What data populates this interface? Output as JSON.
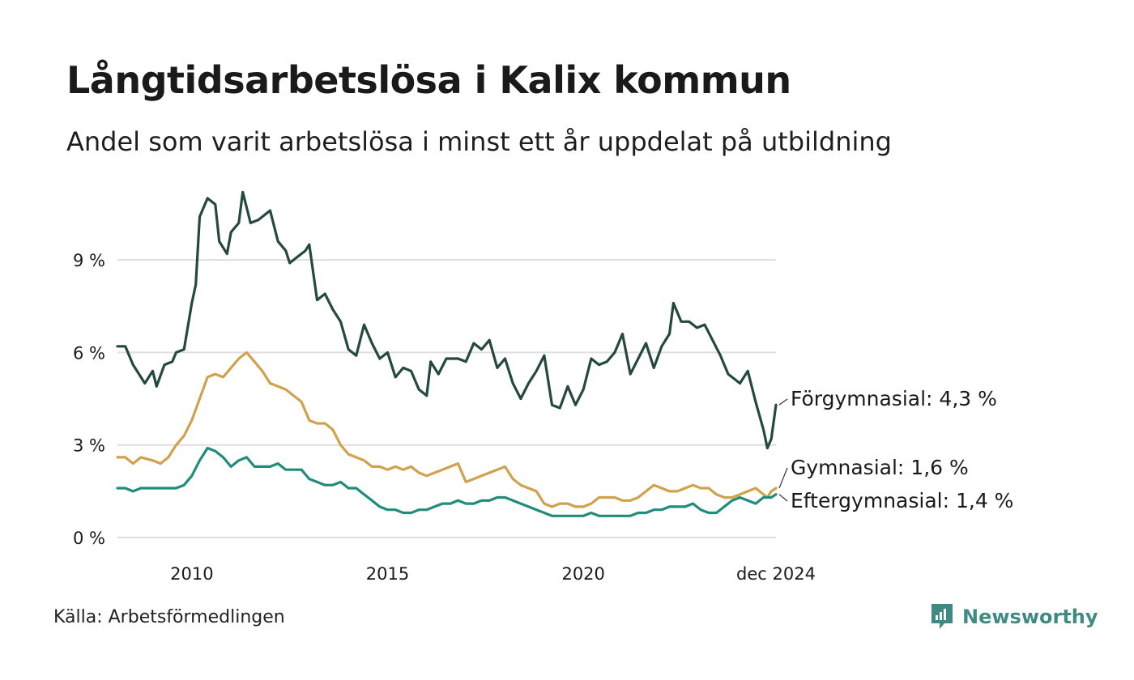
{
  "title": "Långtidsarbetslösa i Kalix kommun",
  "subtitle": "Andel som varit arbetslösa i minst ett år uppdelat på utbildning",
  "source": "Källa: Arbetsförmedlingen",
  "brand": {
    "name": "Newsworthy",
    "icon": "newsworthy-logo-icon",
    "color": "#3f8b84"
  },
  "chart_data": {
    "type": "line",
    "title": "Långtidsarbetslösa i Kalix kommun",
    "subtitle": "Andel som varit arbetslösa i minst ett år uppdelat på utbildning",
    "xlabel": "",
    "ylabel": "",
    "xlim": [
      2008.1,
      2024.92
    ],
    "ylim": [
      0,
      11.5
    ],
    "grid": true,
    "y_ticks": [
      {
        "value": 0,
        "label": "0 %"
      },
      {
        "value": 3,
        "label": "3 %"
      },
      {
        "value": 6,
        "label": "6 %"
      },
      {
        "value": 9,
        "label": "9 %"
      }
    ],
    "x_ticks": [
      {
        "value": 2010,
        "label": "2010"
      },
      {
        "value": 2015,
        "label": "2015"
      },
      {
        "value": 2020,
        "label": "2020"
      },
      {
        "value": 2024.92,
        "label": "dec 2024"
      }
    ],
    "series": [
      {
        "name": "Förgymnasial",
        "label": "Förgymnasial: 4,3 %",
        "color": "#25483f",
        "points": [
          [
            2008.1,
            6.2
          ],
          [
            2008.3,
            6.2
          ],
          [
            2008.5,
            5.6
          ],
          [
            2008.8,
            5.0
          ],
          [
            2009.0,
            5.4
          ],
          [
            2009.1,
            4.9
          ],
          [
            2009.3,
            5.6
          ],
          [
            2009.5,
            5.7
          ],
          [
            2009.6,
            6.0
          ],
          [
            2009.8,
            6.1
          ],
          [
            2010.0,
            7.6
          ],
          [
            2010.1,
            8.2
          ],
          [
            2010.2,
            10.4
          ],
          [
            2010.4,
            11.0
          ],
          [
            2010.6,
            10.8
          ],
          [
            2010.7,
            9.6
          ],
          [
            2010.9,
            9.2
          ],
          [
            2011.0,
            9.9
          ],
          [
            2011.2,
            10.2
          ],
          [
            2011.3,
            11.2
          ],
          [
            2011.5,
            10.2
          ],
          [
            2011.7,
            10.3
          ],
          [
            2011.9,
            10.5
          ],
          [
            2012.0,
            10.6
          ],
          [
            2012.2,
            9.6
          ],
          [
            2012.4,
            9.3
          ],
          [
            2012.5,
            8.9
          ],
          [
            2012.7,
            9.1
          ],
          [
            2012.9,
            9.3
          ],
          [
            2013.0,
            9.5
          ],
          [
            2013.2,
            7.7
          ],
          [
            2013.4,
            7.9
          ],
          [
            2013.6,
            7.4
          ],
          [
            2013.8,
            7.0
          ],
          [
            2014.0,
            6.1
          ],
          [
            2014.2,
            5.9
          ],
          [
            2014.4,
            6.9
          ],
          [
            2014.6,
            6.3
          ],
          [
            2014.8,
            5.8
          ],
          [
            2015.0,
            6.0
          ],
          [
            2015.2,
            5.2
          ],
          [
            2015.4,
            5.5
          ],
          [
            2015.6,
            5.4
          ],
          [
            2015.8,
            4.8
          ],
          [
            2016.0,
            4.6
          ],
          [
            2016.1,
            5.7
          ],
          [
            2016.3,
            5.3
          ],
          [
            2016.5,
            5.8
          ],
          [
            2016.8,
            5.8
          ],
          [
            2017.0,
            5.7
          ],
          [
            2017.2,
            6.3
          ],
          [
            2017.4,
            6.1
          ],
          [
            2017.6,
            6.4
          ],
          [
            2017.8,
            5.5
          ],
          [
            2018.0,
            5.8
          ],
          [
            2018.2,
            5.0
          ],
          [
            2018.4,
            4.5
          ],
          [
            2018.6,
            5.0
          ],
          [
            2018.8,
            5.4
          ],
          [
            2019.0,
            5.9
          ],
          [
            2019.2,
            4.3
          ],
          [
            2019.4,
            4.2
          ],
          [
            2019.6,
            4.9
          ],
          [
            2019.8,
            4.3
          ],
          [
            2020.0,
            4.8
          ],
          [
            2020.2,
            5.8
          ],
          [
            2020.4,
            5.6
          ],
          [
            2020.6,
            5.7
          ],
          [
            2020.8,
            6.0
          ],
          [
            2021.0,
            6.6
          ],
          [
            2021.2,
            5.3
          ],
          [
            2021.4,
            5.8
          ],
          [
            2021.6,
            6.3
          ],
          [
            2021.8,
            5.5
          ],
          [
            2022.0,
            6.2
          ],
          [
            2022.2,
            6.6
          ],
          [
            2022.3,
            7.6
          ],
          [
            2022.5,
            7.0
          ],
          [
            2022.7,
            7.0
          ],
          [
            2022.9,
            6.8
          ],
          [
            2023.1,
            6.9
          ],
          [
            2023.3,
            6.4
          ],
          [
            2023.5,
            5.9
          ],
          [
            2023.7,
            5.3
          ],
          [
            2024.0,
            5.0
          ],
          [
            2024.2,
            5.4
          ],
          [
            2024.4,
            4.4
          ],
          [
            2024.6,
            3.5
          ],
          [
            2024.7,
            2.9
          ],
          [
            2024.8,
            3.2
          ],
          [
            2024.92,
            4.3
          ]
        ]
      },
      {
        "name": "Gymnasial",
        "label": "Gymnasial: 1,6 %",
        "color": "#d0a24e",
        "points": [
          [
            2008.1,
            2.6
          ],
          [
            2008.3,
            2.6
          ],
          [
            2008.5,
            2.4
          ],
          [
            2008.7,
            2.6
          ],
          [
            2009.0,
            2.5
          ],
          [
            2009.2,
            2.4
          ],
          [
            2009.4,
            2.6
          ],
          [
            2009.6,
            3.0
          ],
          [
            2009.8,
            3.3
          ],
          [
            2010.0,
            3.8
          ],
          [
            2010.2,
            4.5
          ],
          [
            2010.4,
            5.2
          ],
          [
            2010.6,
            5.3
          ],
          [
            2010.8,
            5.2
          ],
          [
            2011.0,
            5.5
          ],
          [
            2011.2,
            5.8
          ],
          [
            2011.4,
            6.0
          ],
          [
            2011.6,
            5.7
          ],
          [
            2011.8,
            5.4
          ],
          [
            2012.0,
            5.0
          ],
          [
            2012.2,
            4.9
          ],
          [
            2012.4,
            4.8
          ],
          [
            2012.6,
            4.6
          ],
          [
            2012.8,
            4.4
          ],
          [
            2013.0,
            3.8
          ],
          [
            2013.2,
            3.7
          ],
          [
            2013.4,
            3.7
          ],
          [
            2013.6,
            3.5
          ],
          [
            2013.8,
            3.0
          ],
          [
            2014.0,
            2.7
          ],
          [
            2014.2,
            2.6
          ],
          [
            2014.4,
            2.5
          ],
          [
            2014.6,
            2.3
          ],
          [
            2014.8,
            2.3
          ],
          [
            2015.0,
            2.2
          ],
          [
            2015.2,
            2.3
          ],
          [
            2015.4,
            2.2
          ],
          [
            2015.6,
            2.3
          ],
          [
            2015.8,
            2.1
          ],
          [
            2016.0,
            2.0
          ],
          [
            2016.2,
            2.1
          ],
          [
            2016.4,
            2.2
          ],
          [
            2016.6,
            2.3
          ],
          [
            2016.8,
            2.4
          ],
          [
            2017.0,
            1.8
          ],
          [
            2017.2,
            1.9
          ],
          [
            2017.4,
            2.0
          ],
          [
            2017.6,
            2.1
          ],
          [
            2017.8,
            2.2
          ],
          [
            2018.0,
            2.3
          ],
          [
            2018.2,
            1.9
          ],
          [
            2018.4,
            1.7
          ],
          [
            2018.6,
            1.6
          ],
          [
            2018.8,
            1.5
          ],
          [
            2019.0,
            1.1
          ],
          [
            2019.2,
            1.0
          ],
          [
            2019.4,
            1.1
          ],
          [
            2019.6,
            1.1
          ],
          [
            2019.8,
            1.0
          ],
          [
            2020.0,
            1.0
          ],
          [
            2020.2,
            1.1
          ],
          [
            2020.4,
            1.3
          ],
          [
            2020.6,
            1.3
          ],
          [
            2020.8,
            1.3
          ],
          [
            2021.0,
            1.2
          ],
          [
            2021.2,
            1.2
          ],
          [
            2021.4,
            1.3
          ],
          [
            2021.6,
            1.5
          ],
          [
            2021.8,
            1.7
          ],
          [
            2022.0,
            1.6
          ],
          [
            2022.2,
            1.5
          ],
          [
            2022.4,
            1.5
          ],
          [
            2022.6,
            1.6
          ],
          [
            2022.8,
            1.7
          ],
          [
            2023.0,
            1.6
          ],
          [
            2023.2,
            1.6
          ],
          [
            2023.4,
            1.4
          ],
          [
            2023.6,
            1.3
          ],
          [
            2023.8,
            1.3
          ],
          [
            2024.0,
            1.4
          ],
          [
            2024.2,
            1.5
          ],
          [
            2024.4,
            1.6
          ],
          [
            2024.6,
            1.4
          ],
          [
            2024.7,
            1.3
          ],
          [
            2024.8,
            1.5
          ],
          [
            2024.92,
            1.6
          ]
        ]
      },
      {
        "name": "Eftergymnasial",
        "label": "Eftergymnasial: 1,4 %",
        "color": "#1f8c7c",
        "points": [
          [
            2008.1,
            1.6
          ],
          [
            2008.3,
            1.6
          ],
          [
            2008.5,
            1.5
          ],
          [
            2008.7,
            1.6
          ],
          [
            2009.0,
            1.6
          ],
          [
            2009.2,
            1.6
          ],
          [
            2009.4,
            1.6
          ],
          [
            2009.6,
            1.6
          ],
          [
            2009.8,
            1.7
          ],
          [
            2010.0,
            2.0
          ],
          [
            2010.2,
            2.5
          ],
          [
            2010.4,
            2.9
          ],
          [
            2010.6,
            2.8
          ],
          [
            2010.8,
            2.6
          ],
          [
            2011.0,
            2.3
          ],
          [
            2011.2,
            2.5
          ],
          [
            2011.4,
            2.6
          ],
          [
            2011.6,
            2.3
          ],
          [
            2011.8,
            2.3
          ],
          [
            2012.0,
            2.3
          ],
          [
            2012.2,
            2.4
          ],
          [
            2012.4,
            2.2
          ],
          [
            2012.6,
            2.2
          ],
          [
            2012.8,
            2.2
          ],
          [
            2013.0,
            1.9
          ],
          [
            2013.2,
            1.8
          ],
          [
            2013.4,
            1.7
          ],
          [
            2013.6,
            1.7
          ],
          [
            2013.8,
            1.8
          ],
          [
            2014.0,
            1.6
          ],
          [
            2014.2,
            1.6
          ],
          [
            2014.4,
            1.4
          ],
          [
            2014.6,
            1.2
          ],
          [
            2014.8,
            1.0
          ],
          [
            2015.0,
            0.9
          ],
          [
            2015.2,
            0.9
          ],
          [
            2015.4,
            0.8
          ],
          [
            2015.6,
            0.8
          ],
          [
            2015.8,
            0.9
          ],
          [
            2016.0,
            0.9
          ],
          [
            2016.2,
            1.0
          ],
          [
            2016.4,
            1.1
          ],
          [
            2016.6,
            1.1
          ],
          [
            2016.8,
            1.2
          ],
          [
            2017.0,
            1.1
          ],
          [
            2017.2,
            1.1
          ],
          [
            2017.4,
            1.2
          ],
          [
            2017.6,
            1.2
          ],
          [
            2017.8,
            1.3
          ],
          [
            2018.0,
            1.3
          ],
          [
            2018.2,
            1.2
          ],
          [
            2018.4,
            1.1
          ],
          [
            2018.6,
            1.0
          ],
          [
            2018.8,
            0.9
          ],
          [
            2019.0,
            0.8
          ],
          [
            2019.2,
            0.7
          ],
          [
            2019.4,
            0.7
          ],
          [
            2019.6,
            0.7
          ],
          [
            2019.8,
            0.7
          ],
          [
            2020.0,
            0.7
          ],
          [
            2020.2,
            0.8
          ],
          [
            2020.4,
            0.7
          ],
          [
            2020.6,
            0.7
          ],
          [
            2020.8,
            0.7
          ],
          [
            2021.0,
            0.7
          ],
          [
            2021.2,
            0.7
          ],
          [
            2021.4,
            0.8
          ],
          [
            2021.6,
            0.8
          ],
          [
            2021.8,
            0.9
          ],
          [
            2022.0,
            0.9
          ],
          [
            2022.2,
            1.0
          ],
          [
            2022.4,
            1.0
          ],
          [
            2022.6,
            1.0
          ],
          [
            2022.8,
            1.1
          ],
          [
            2023.0,
            0.9
          ],
          [
            2023.2,
            0.8
          ],
          [
            2023.4,
            0.8
          ],
          [
            2023.6,
            1.0
          ],
          [
            2023.8,
            1.2
          ],
          [
            2024.0,
            1.3
          ],
          [
            2024.2,
            1.2
          ],
          [
            2024.4,
            1.1
          ],
          [
            2024.6,
            1.3
          ],
          [
            2024.7,
            1.3
          ],
          [
            2024.8,
            1.3
          ],
          [
            2024.92,
            1.4
          ]
        ]
      }
    ]
  }
}
